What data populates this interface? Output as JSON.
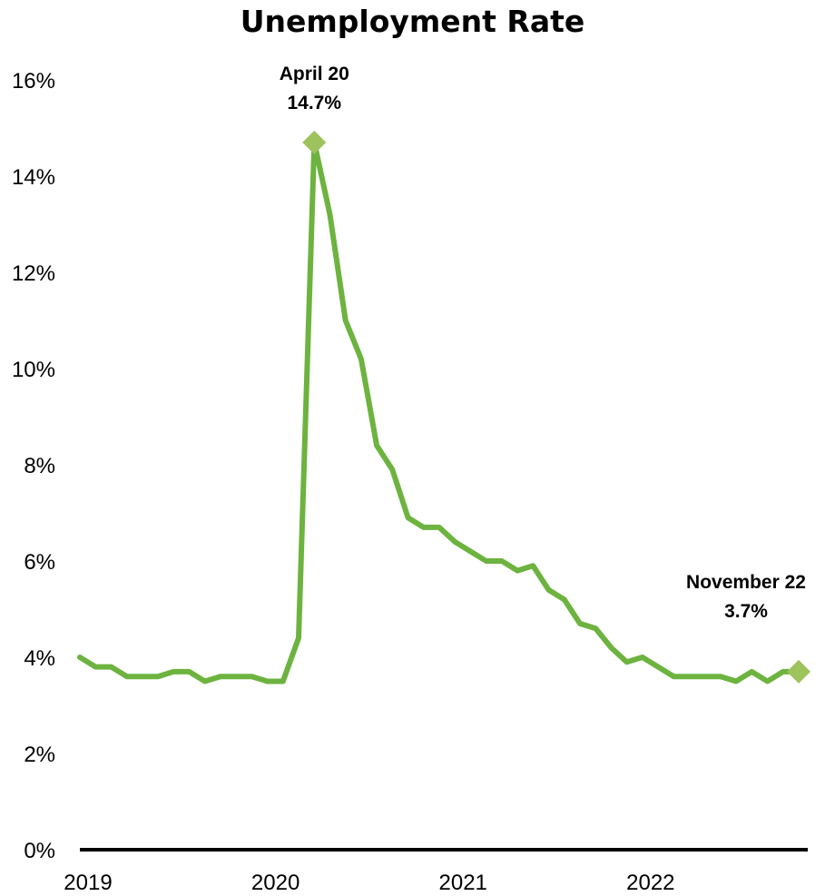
{
  "chart_data": {
    "type": "line",
    "title": "Unemployment Rate",
    "xlabel": "",
    "ylabel": "",
    "ylim": [
      0,
      16
    ],
    "y_ticks": [
      "0%",
      "2%",
      "4%",
      "6%",
      "8%",
      "10%",
      "12%",
      "14%",
      "16%"
    ],
    "x_ticks": [
      "2019",
      "2020",
      "2021",
      "2022"
    ],
    "grid": false,
    "legend": "none",
    "line_color": "#6db33f",
    "marker_color": "#9dc35c",
    "axis_color": "#000000",
    "series": [
      {
        "x": [
          "2019-01",
          "2019-02",
          "2019-03",
          "2019-04",
          "2019-05",
          "2019-06",
          "2019-07",
          "2019-08",
          "2019-09",
          "2019-10",
          "2019-11",
          "2019-12",
          "2020-01",
          "2020-02",
          "2020-03",
          "2020-04",
          "2020-05",
          "2020-06",
          "2020-07",
          "2020-08",
          "2020-09",
          "2020-10",
          "2020-11",
          "2020-12",
          "2021-01",
          "2021-02",
          "2021-03",
          "2021-04",
          "2021-05",
          "2021-06",
          "2021-07",
          "2021-08",
          "2021-09",
          "2021-10",
          "2021-11",
          "2021-12",
          "2022-01",
          "2022-02",
          "2022-03",
          "2022-04",
          "2022-05",
          "2022-06",
          "2022-07",
          "2022-08",
          "2022-09",
          "2022-10",
          "2022-11"
        ],
        "values": [
          4.0,
          3.8,
          3.8,
          3.6,
          3.6,
          3.6,
          3.7,
          3.7,
          3.5,
          3.6,
          3.6,
          3.6,
          3.5,
          3.5,
          4.4,
          14.7,
          13.2,
          11.0,
          10.2,
          8.4,
          7.9,
          6.9,
          6.7,
          6.7,
          6.4,
          6.2,
          6.0,
          6.0,
          5.8,
          5.9,
          5.4,
          5.2,
          4.7,
          4.6,
          4.2,
          3.9,
          4.0,
          3.8,
          3.6,
          3.6,
          3.6,
          3.6,
          3.5,
          3.7,
          3.5,
          3.7,
          3.7
        ]
      }
    ],
    "annotations": [
      {
        "x": "2020-04",
        "value": 14.7,
        "label_line1": "April 20",
        "label_line2": "14.7%"
      },
      {
        "x": "2022-11",
        "value": 3.7,
        "label_line1": "November 22",
        "label_line2": "3.7%"
      }
    ]
  }
}
